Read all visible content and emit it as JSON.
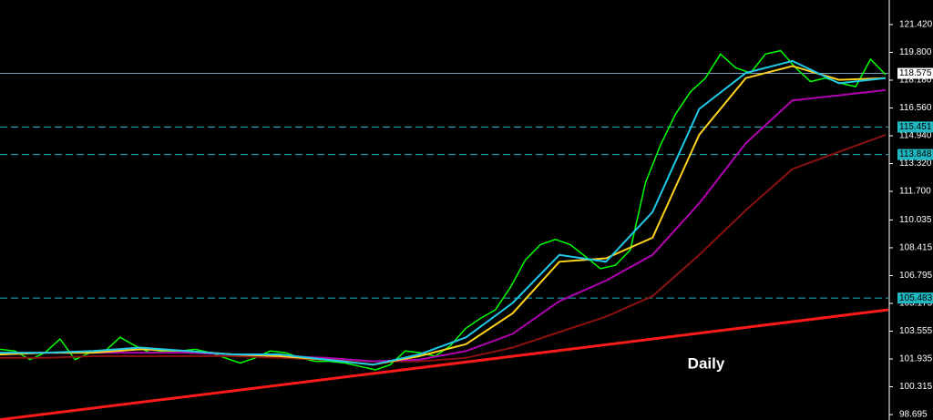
{
  "chart_data": {
    "type": "line",
    "annotation": "Daily",
    "ylim": [
      98.38,
      122.85
    ],
    "yticks": [
      {
        "value": 121.42,
        "label": "121.420"
      },
      {
        "value": 119.8,
        "label": "119.800"
      },
      {
        "value": 118.18,
        "label": "118.180"
      },
      {
        "value": 116.56,
        "label": "116.560"
      },
      {
        "value": 114.94,
        "label": "114.940"
      },
      {
        "value": 113.32,
        "label": "113.320"
      },
      {
        "value": 111.7,
        "label": "111.700"
      },
      110.035,
      108.415,
      106.795,
      105.175,
      103.555,
      101.935,
      100.315,
      98.695
    ],
    "levels": [
      {
        "value": 118.575,
        "color": "#7f9fbf",
        "dashed": false
      },
      {
        "value": 115.451,
        "color": "#20b8c0",
        "dashed": true
      },
      {
        "value": 113.848,
        "color": "#20b8c0",
        "dashed": true
      },
      {
        "value": 105.483,
        "color": "#20b8c0",
        "dashed": true
      }
    ],
    "trendline": {
      "color": "#ff1a1a",
      "values": [
        98.4,
        104.8
      ]
    },
    "series": [
      {
        "color": "#00ff00",
        "values": [
          102.5,
          102.4,
          101.9,
          102.3,
          103.1,
          101.9,
          102.3,
          102.4,
          103.2,
          102.7,
          102.3,
          102.4,
          102.4,
          102.5,
          102.3,
          102.0,
          101.7,
          102.0,
          102.4,
          102.3,
          102.0,
          101.8,
          101.8,
          101.7,
          101.5,
          101.3,
          101.6,
          102.4,
          102.3,
          102.1,
          102.7,
          103.7,
          104.3,
          104.8,
          106.1,
          107.7,
          108.6,
          108.9,
          108.6,
          107.9,
          107.2,
          107.4,
          108.3,
          112.2,
          114.4,
          116.2,
          117.5,
          118.3,
          119.7,
          118.9,
          118.6,
          119.7,
          119.9,
          118.9,
          118.1,
          118.3,
          118.0,
          117.8,
          119.4,
          118.5
        ]
      },
      {
        "color": "#8b1010",
        "values": [
          102.0,
          102.0,
          102.1,
          102.1,
          102.1,
          102.1,
          102.0,
          101.9,
          101.8,
          101.8,
          102.0,
          102.6,
          103.5,
          104.4,
          105.6,
          108.0,
          110.6,
          113.0,
          114.0,
          115.0
        ]
      },
      {
        "color": "#b000b0",
        "values": [
          102.2,
          102.3,
          102.3,
          102.3,
          102.3,
          102.2,
          102.1,
          102.0,
          101.8,
          101.9,
          102.4,
          103.4,
          105.3,
          106.5,
          108.0,
          111.0,
          114.5,
          117.0,
          117.3,
          117.6
        ]
      },
      {
        "color": "#ffd21f",
        "values": [
          102.2,
          102.3,
          102.3,
          102.5,
          102.4,
          102.2,
          102.1,
          101.9,
          101.6,
          102.1,
          102.8,
          104.6,
          107.6,
          107.8,
          109.0,
          115.0,
          118.3,
          119.0,
          118.2,
          118.3
        ]
      },
      {
        "color": "#20c8e8",
        "values": [
          102.3,
          102.3,
          102.4,
          102.6,
          102.4,
          102.2,
          102.2,
          101.9,
          101.6,
          102.2,
          103.2,
          105.2,
          108.0,
          107.6,
          110.5,
          116.5,
          118.6,
          119.3,
          118.0,
          118.3
        ]
      }
    ]
  }
}
